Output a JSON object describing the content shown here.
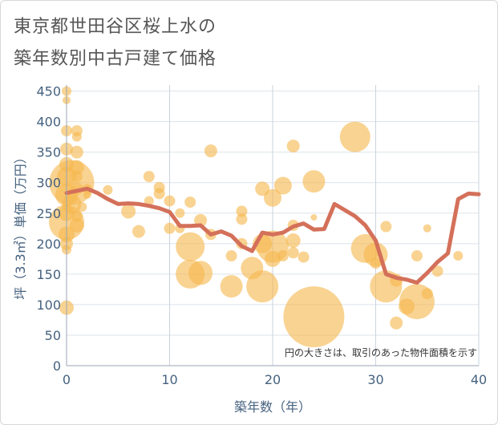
{
  "title_lines": [
    "東京都世田谷区桜上水の",
    "築年数別中古戸建て価格"
  ],
  "chart_data": {
    "type": "scatter",
    "title": "東京都世田谷区桜上水の築年数別中古戸建て価格",
    "xlabel": "築年数（年）",
    "ylabel": "坪（3.3㎡）単価（万円）",
    "xlim": [
      0,
      40
    ],
    "ylim": [
      0,
      460
    ],
    "x_ticks": [
      0,
      10,
      20,
      30,
      40
    ],
    "y_ticks": [
      0,
      50,
      100,
      150,
      200,
      250,
      300,
      350,
      400,
      450
    ],
    "grid": true,
    "note": "円の大きさは、取引のあった物件面積を示す",
    "bubble_color": "#f5b84f",
    "line_color": "#d4705a",
    "bubbles": [
      {
        "x": 0,
        "y": 450,
        "s": 6
      },
      {
        "x": 0,
        "y": 435,
        "s": 5
      },
      {
        "x": 0,
        "y": 385,
        "s": 7
      },
      {
        "x": 0,
        "y": 355,
        "s": 8
      },
      {
        "x": 0,
        "y": 330,
        "s": 9
      },
      {
        "x": 0,
        "y": 310,
        "s": 12
      },
      {
        "x": 0.5,
        "y": 300,
        "s": 28
      },
      {
        "x": 0,
        "y": 280,
        "s": 14
      },
      {
        "x": 0.5,
        "y": 265,
        "s": 12
      },
      {
        "x": 0,
        "y": 250,
        "s": 10
      },
      {
        "x": 0,
        "y": 235,
        "s": 22
      },
      {
        "x": 0,
        "y": 215,
        "s": 10
      },
      {
        "x": 0,
        "y": 200,
        "s": 8
      },
      {
        "x": 0,
        "y": 190,
        "s": 6
      },
      {
        "x": 0,
        "y": 95,
        "s": 9
      },
      {
        "x": 1,
        "y": 385,
        "s": 7
      },
      {
        "x": 1,
        "y": 375,
        "s": 6
      },
      {
        "x": 1,
        "y": 350,
        "s": 8
      },
      {
        "x": 1,
        "y": 325,
        "s": 9
      },
      {
        "x": 1,
        "y": 310,
        "s": 7
      },
      {
        "x": 1,
        "y": 290,
        "s": 8
      },
      {
        "x": 1,
        "y": 245,
        "s": 7
      },
      {
        "x": 1,
        "y": 230,
        "s": 9
      },
      {
        "x": 1.5,
        "y": 260,
        "s": 6
      },
      {
        "x": 2,
        "y": 290,
        "s": 6
      },
      {
        "x": 2,
        "y": 280,
        "s": 5
      },
      {
        "x": 4,
        "y": 288,
        "s": 6
      },
      {
        "x": 6,
        "y": 253,
        "s": 9
      },
      {
        "x": 7,
        "y": 220,
        "s": 8
      },
      {
        "x": 8,
        "y": 310,
        "s": 7
      },
      {
        "x": 8,
        "y": 270,
        "s": 6
      },
      {
        "x": 9,
        "y": 292,
        "s": 7
      },
      {
        "x": 9,
        "y": 282,
        "s": 7
      },
      {
        "x": 10,
        "y": 270,
        "s": 7
      },
      {
        "x": 10,
        "y": 225,
        "s": 7
      },
      {
        "x": 11,
        "y": 250,
        "s": 6
      },
      {
        "x": 11,
        "y": 225,
        "s": 6
      },
      {
        "x": 12,
        "y": 268,
        "s": 7
      },
      {
        "x": 12,
        "y": 195,
        "s": 18
      },
      {
        "x": 12,
        "y": 150,
        "s": 18
      },
      {
        "x": 13,
        "y": 238,
        "s": 8
      },
      {
        "x": 13,
        "y": 152,
        "s": 15
      },
      {
        "x": 14,
        "y": 352,
        "s": 8
      },
      {
        "x": 14,
        "y": 215,
        "s": 7
      },
      {
        "x": 16,
        "y": 180,
        "s": 7
      },
      {
        "x": 16,
        "y": 130,
        "s": 14
      },
      {
        "x": 17,
        "y": 253,
        "s": 7
      },
      {
        "x": 17,
        "y": 240,
        "s": 7
      },
      {
        "x": 17,
        "y": 200,
        "s": 7
      },
      {
        "x": 18,
        "y": 160,
        "s": 14
      },
      {
        "x": 19,
        "y": 290,
        "s": 9
      },
      {
        "x": 19,
        "y": 200,
        "s": 12
      },
      {
        "x": 19,
        "y": 130,
        "s": 20
      },
      {
        "x": 20,
        "y": 275,
        "s": 11
      },
      {
        "x": 20,
        "y": 195,
        "s": 20
      },
      {
        "x": 20,
        "y": 175,
        "s": 10
      },
      {
        "x": 21,
        "y": 295,
        "s": 11
      },
      {
        "x": 21,
        "y": 180,
        "s": 7
      },
      {
        "x": 22,
        "y": 360,
        "s": 8
      },
      {
        "x": 22,
        "y": 230,
        "s": 7
      },
      {
        "x": 22,
        "y": 205,
        "s": 9
      },
      {
        "x": 22,
        "y": 185,
        "s": 7
      },
      {
        "x": 23,
        "y": 178,
        "s": 7
      },
      {
        "x": 24,
        "y": 302,
        "s": 14
      },
      {
        "x": 24,
        "y": 243,
        "s": 4
      },
      {
        "x": 24,
        "y": 80,
        "s": 38
      },
      {
        "x": 28,
        "y": 375,
        "s": 19
      },
      {
        "x": 29,
        "y": 192,
        "s": 18
      },
      {
        "x": 30,
        "y": 182,
        "s": 15
      },
      {
        "x": 30,
        "y": 168,
        "s": 7
      },
      {
        "x": 31,
        "y": 228,
        "s": 7
      },
      {
        "x": 31,
        "y": 130,
        "s": 20
      },
      {
        "x": 32,
        "y": 140,
        "s": 8
      },
      {
        "x": 32,
        "y": 70,
        "s": 8
      },
      {
        "x": 33,
        "y": 97,
        "s": 10
      },
      {
        "x": 34,
        "y": 105,
        "s": 22
      },
      {
        "x": 34,
        "y": 180,
        "s": 7
      },
      {
        "x": 35,
        "y": 225,
        "s": 5
      },
      {
        "x": 35,
        "y": 118,
        "s": 7
      },
      {
        "x": 36,
        "y": 155,
        "s": 7
      },
      {
        "x": 38,
        "y": 180,
        "s": 6
      }
    ],
    "trend": {
      "x": [
        0,
        2,
        3,
        4,
        5,
        6,
        7,
        8,
        9,
        10,
        11,
        12,
        13,
        14,
        15,
        16,
        17,
        18,
        19,
        20,
        21,
        22,
        23,
        24,
        25,
        26,
        27,
        28,
        29,
        30,
        31,
        32,
        33,
        34,
        35,
        36,
        37,
        38,
        39,
        40
      ],
      "y": [
        283,
        290,
        283,
        273,
        265,
        266,
        265,
        262,
        258,
        252,
        229,
        229,
        230,
        215,
        220,
        213,
        196,
        188,
        218,
        215,
        218,
        228,
        233,
        223,
        224,
        265,
        255,
        245,
        230,
        205,
        150,
        144,
        141,
        136,
        152,
        170,
        184,
        273,
        282,
        281
      ]
    }
  }
}
